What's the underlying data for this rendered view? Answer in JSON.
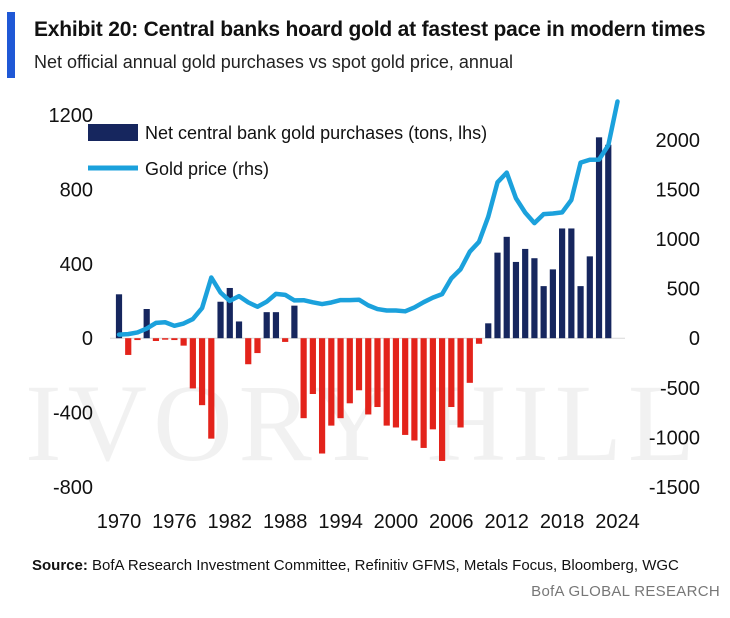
{
  "header": {
    "title": "Exhibit 20: Central banks hoard gold at fastest pace in modern times",
    "subtitle": "Net official annual gold purchases vs spot gold price, annual"
  },
  "watermark": "IVORY HILL",
  "footer": {
    "source_label": "Source:",
    "source_text": "BofA Research Investment Committee, Refinitiv GFMS, Metals Focus, Bloomberg, WGC",
    "brand": "BofA GLOBAL RESEARCH"
  },
  "colors": {
    "positive_bar": "#16265e",
    "negative_bar": "#e3231b",
    "gold_line": "#1ba1dc",
    "accent": "#1f58d6"
  },
  "chart_data": {
    "type": "bar",
    "legend": [
      {
        "label": "Net central bank gold purchases (tons, lhs)",
        "kind": "bar"
      },
      {
        "label": "Gold price (rhs)",
        "kind": "line"
      }
    ],
    "x_tick_labels": [
      "1970",
      "1976",
      "1982",
      "1988",
      "1994",
      "2000",
      "2006",
      "2012",
      "2018",
      "2024"
    ],
    "y_left": {
      "min": -800,
      "max": 1200,
      "ticks": [
        "-800",
        "-400",
        "0",
        "400",
        "800",
        "1200"
      ]
    },
    "y_right": {
      "min": -1500,
      "max": 2250,
      "ticks": [
        "-1500",
        "-1000",
        "-500",
        "0",
        "500",
        "1000",
        "1500",
        "2000"
      ]
    },
    "years": [
      1970,
      1971,
      1972,
      1973,
      1974,
      1975,
      1976,
      1977,
      1978,
      1979,
      1980,
      1981,
      1982,
      1983,
      1984,
      1985,
      1986,
      1987,
      1988,
      1989,
      1990,
      1991,
      1992,
      1993,
      1994,
      1995,
      1996,
      1997,
      1998,
      1999,
      2000,
      2001,
      2002,
      2003,
      2004,
      2005,
      2006,
      2007,
      2008,
      2009,
      2010,
      2011,
      2012,
      2013,
      2014,
      2015,
      2016,
      2017,
      2018,
      2019,
      2020,
      2021,
      2022,
      2023,
      2024
    ],
    "series": [
      {
        "name": "Net central bank gold purchases (tons, lhs)",
        "type": "bar",
        "values": [
          236,
          -90,
          -10,
          157,
          -15,
          -8,
          -10,
          -40,
          -270,
          -360,
          -540,
          196,
          270,
          90,
          -140,
          -80,
          140,
          140,
          -20,
          175,
          -430,
          -300,
          -620,
          -470,
          -430,
          -350,
          -280,
          -410,
          -370,
          -470,
          -480,
          -520,
          -550,
          -590,
          -490,
          -660,
          -370,
          -480,
          -240,
          -30,
          80,
          460,
          545,
          410,
          480,
          430,
          280,
          370,
          590,
          590,
          280,
          440,
          1080,
          1040,
          null
        ]
      },
      {
        "name": "Gold price (rhs)",
        "type": "line",
        "values": [
          36,
          41,
          58,
          97,
          154,
          161,
          125,
          148,
          193,
          304,
          612,
          460,
          376,
          424,
          361,
          317,
          368,
          447,
          437,
          381,
          383,
          362,
          344,
          360,
          384,
          384,
          388,
          331,
          294,
          279,
          279,
          271,
          310,
          363,
          409,
          444,
          603,
          695,
          872,
          972,
          1225,
          1571,
          1669,
          1411,
          1266,
          1160,
          1251,
          1257,
          1268,
          1393,
          1770,
          1799,
          1800,
          1943,
          2386
        ]
      }
    ]
  }
}
